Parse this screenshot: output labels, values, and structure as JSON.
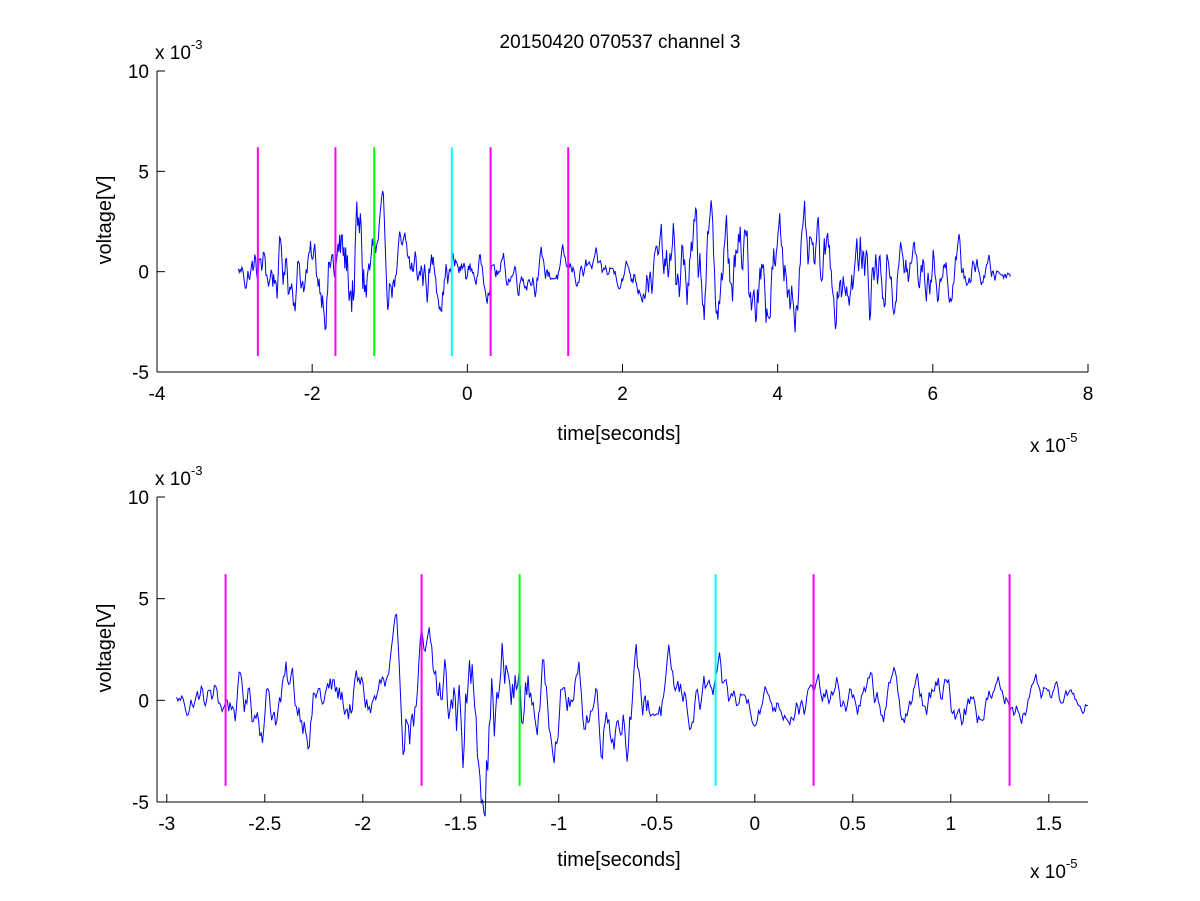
{
  "figure": {
    "title": "20150420 070537 channel 3"
  },
  "chart_data": [
    {
      "type": "line",
      "xlabel": "time[seconds]",
      "ylabel": "voltage[V]",
      "x_exponent_label": "x 10",
      "x_exponent": "-5",
      "y_exponent_label": "x 10",
      "y_exponent": "-3",
      "xlim": [
        -4,
        8
      ],
      "ylim": [
        -5,
        10
      ],
      "x_ticks": [
        -4,
        -2,
        0,
        2,
        4,
        6,
        8
      ],
      "x_tick_labels": [
        "-4",
        "-2",
        "0",
        "2",
        "4",
        "6",
        "8"
      ],
      "y_ticks": [
        -5,
        0,
        5,
        10
      ],
      "y_tick_labels": [
        "-5",
        "0",
        "5",
        "10"
      ],
      "grid": false,
      "box": "left-bottom",
      "series": [
        {
          "color": "#0000ff",
          "x_range": [
            -2.95,
            7.0
          ],
          "envelope": [
            [
              -2.95,
              1.0
            ],
            [
              -2.5,
              2.6
            ],
            [
              -2.0,
              2.0
            ],
            [
              -1.37,
              5.6
            ],
            [
              -1.0,
              2.1
            ],
            [
              -0.5,
              2.3
            ],
            [
              0.0,
              1.2
            ],
            [
              1.0,
              1.2
            ],
            [
              2.0,
              0.8
            ],
            [
              2.8,
              3.6
            ],
            [
              3.95,
              3.6
            ],
            [
              4.5,
              2.6
            ],
            [
              5.0,
              3.2
            ],
            [
              6.0,
              2.2
            ],
            [
              7.0,
              0.5
            ]
          ]
        }
      ],
      "event_markers": [
        {
          "x": -2.7,
          "color": "#ff00ff",
          "y_range": [
            -4.2,
            6.2
          ]
        },
        {
          "x": -1.7,
          "color": "#ff00ff",
          "y_range": [
            -4.2,
            6.2
          ]
        },
        {
          "x": -1.2,
          "color": "#00ff00",
          "y_range": [
            -4.2,
            6.2
          ]
        },
        {
          "x": -0.2,
          "color": "#00ffff",
          "y_range": [
            -4.2,
            6.2
          ]
        },
        {
          "x": 0.3,
          "color": "#ff00ff",
          "y_range": [
            -4.2,
            6.2
          ]
        },
        {
          "x": 1.3,
          "color": "#ff00ff",
          "y_range": [
            -4.2,
            6.2
          ]
        }
      ]
    },
    {
      "type": "line",
      "xlabel": "time[seconds]",
      "ylabel": "voltage[V]",
      "x_exponent_label": "x 10",
      "x_exponent": "-5",
      "y_exponent_label": "x 10",
      "y_exponent": "-3",
      "xlim": [
        -3.05,
        1.7
      ],
      "ylim": [
        -5,
        10
      ],
      "x_ticks": [
        -3,
        -2.5,
        -2,
        -1.5,
        -1,
        -0.5,
        0,
        0.5,
        1,
        1.5
      ],
      "x_tick_labels": [
        "-3",
        "-2.5",
        "-2",
        "-1.5",
        "-1",
        "-0.5",
        "0",
        "0.5",
        "1",
        "1.5"
      ],
      "y_ticks": [
        -5,
        0,
        5,
        10
      ],
      "y_tick_labels": [
        "-5",
        "0",
        "5",
        "10"
      ],
      "grid": false,
      "box": "left-bottom",
      "series": [
        {
          "color": "#0000ff",
          "x_range": [
            -2.95,
            1.7
          ],
          "envelope": [
            [
              -2.95,
              1.0
            ],
            [
              -2.45,
              2.6
            ],
            [
              -2.0,
              2.2
            ],
            [
              -1.37,
              5.6
            ],
            [
              -1.0,
              2.1
            ],
            [
              -0.72,
              3.1
            ],
            [
              -0.5,
              2.3
            ],
            [
              -0.2,
              1.9
            ],
            [
              0.0,
              1.2
            ],
            [
              1.0,
              1.8
            ],
            [
              1.7,
              0.6
            ]
          ]
        }
      ],
      "event_markers": [
        {
          "x": -2.7,
          "color": "#ff00ff",
          "y_range": [
            -4.2,
            6.2
          ]
        },
        {
          "x": -1.7,
          "color": "#ff00ff",
          "y_range": [
            -4.2,
            6.2
          ]
        },
        {
          "x": -1.2,
          "color": "#00ff00",
          "y_range": [
            -4.2,
            6.2
          ]
        },
        {
          "x": -0.2,
          "color": "#00ffff",
          "y_range": [
            -4.2,
            6.2
          ]
        },
        {
          "x": 0.3,
          "color": "#ff00ff",
          "y_range": [
            -4.2,
            6.2
          ]
        },
        {
          "x": 1.3,
          "color": "#ff00ff",
          "y_range": [
            -4.2,
            6.2
          ]
        }
      ]
    }
  ]
}
